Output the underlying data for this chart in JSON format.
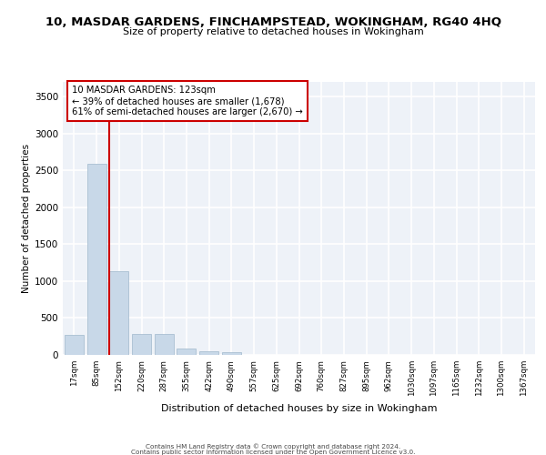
{
  "title": "10, MASDAR GARDENS, FINCHAMPSTEAD, WOKINGHAM, RG40 4HQ",
  "subtitle": "Size of property relative to detached houses in Wokingham",
  "xlabel": "Distribution of detached houses by size in Wokingham",
  "ylabel": "Number of detached properties",
  "bar_color": "#c8d8e8",
  "bar_edge_color": "#a0b8cc",
  "background_color": "#eef2f8",
  "grid_color": "#ffffff",
  "categories": [
    "17sqm",
    "85sqm",
    "152sqm",
    "220sqm",
    "287sqm",
    "355sqm",
    "422sqm",
    "490sqm",
    "557sqm",
    "625sqm",
    "692sqm",
    "760sqm",
    "827sqm",
    "895sqm",
    "962sqm",
    "1030sqm",
    "1097sqm",
    "1165sqm",
    "1232sqm",
    "1300sqm",
    "1367sqm"
  ],
  "values": [
    270,
    2590,
    1130,
    285,
    285,
    90,
    55,
    35,
    0,
    0,
    0,
    0,
    0,
    0,
    0,
    0,
    0,
    0,
    0,
    0,
    0
  ],
  "ylim": [
    0,
    3700
  ],
  "yticks": [
    0,
    500,
    1000,
    1500,
    2000,
    2500,
    3000,
    3500
  ],
  "property_line_x": 1.57,
  "property_line_color": "#cc0000",
  "annotation_text": "10 MASDAR GARDENS: 123sqm\n← 39% of detached houses are smaller (1,678)\n61% of semi-detached houses are larger (2,670) →",
  "annotation_box_color": "#ffffff",
  "annotation_box_edge": "#cc0000",
  "footer_line1": "Contains HM Land Registry data © Crown copyright and database right 2024.",
  "footer_line2": "Contains public sector information licensed under the Open Government Licence v3.0."
}
